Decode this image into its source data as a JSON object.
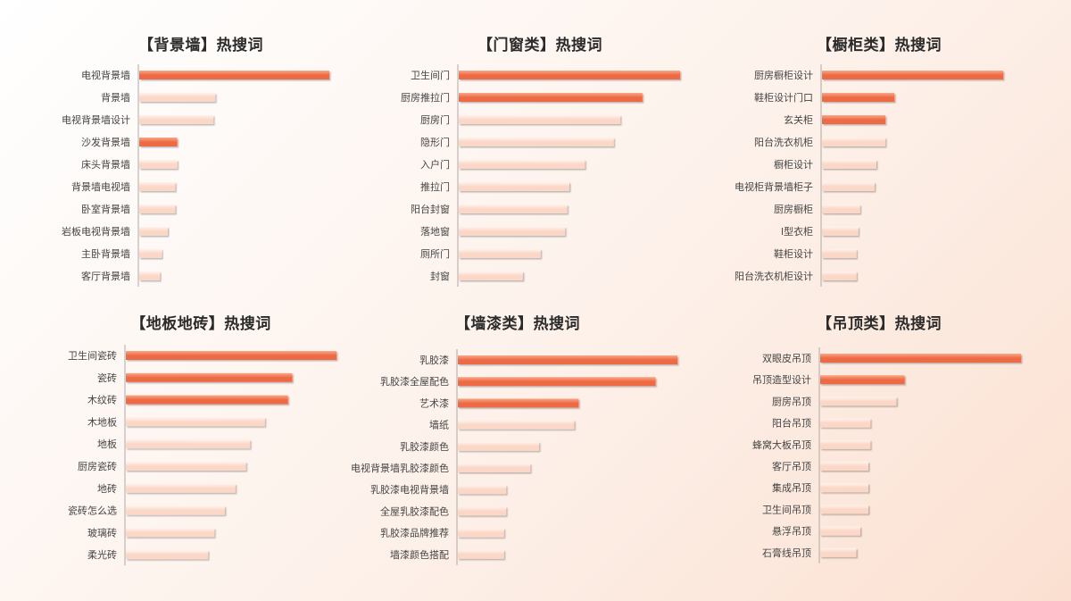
{
  "colors": {
    "hot": "#ee6a45",
    "hot_light": "#f7a98a",
    "cool": "#fbd7c7",
    "cool_light": "#fff2ec",
    "axis": "#b0a8a4"
  },
  "chart_data": [
    {
      "type": "bar",
      "orientation": "horizontal",
      "title": "【背景墙】热搜词",
      "categories": [
        "电视背景墙",
        "背景墙",
        "电视背景墙设计",
        "沙发背景墙",
        "床头背景墙",
        "背景墙电视墙",
        "卧室背景墙",
        "岩板电视背景墙",
        "主卧背景墙",
        "客厅背景墙"
      ],
      "values": [
        100,
        40,
        39,
        20,
        20,
        19,
        19,
        15,
        12,
        11
      ],
      "highlight": [
        true,
        false,
        false,
        true,
        false,
        false,
        false,
        false,
        false,
        false
      ],
      "xlim": [
        0,
        100
      ]
    },
    {
      "type": "bar",
      "orientation": "horizontal",
      "title": "【门窗类】热搜词",
      "categories": [
        "卫生间门",
        "厨房推拉门",
        "厨房门",
        "隐形门",
        "入户门",
        "推拉门",
        "阳台封窗",
        "落地窗",
        "厕所门",
        "封窗"
      ],
      "values": [
        100,
        83,
        73,
        70,
        57,
        50,
        49,
        48,
        37,
        29
      ],
      "highlight": [
        true,
        true,
        false,
        false,
        false,
        false,
        false,
        false,
        false,
        false
      ],
      "xlim": [
        0,
        100
      ]
    },
    {
      "type": "bar",
      "orientation": "horizontal",
      "title": "【橱柜类】热搜词",
      "categories": [
        "厨房橱柜设计",
        "鞋柜设计门口",
        "玄关柜",
        "阳台洗衣机柜",
        "橱柜设计",
        "电视柜背景墙柜子",
        "厨房橱柜",
        "l型衣柜",
        "鞋柜设计",
        "阳台洗衣机柜设计"
      ],
      "values": [
        100,
        40,
        35,
        35,
        30,
        29,
        21,
        20,
        19,
        19
      ],
      "highlight": [
        true,
        true,
        true,
        false,
        false,
        false,
        false,
        false,
        false,
        false
      ],
      "xlim": [
        0,
        100
      ]
    },
    {
      "type": "bar",
      "orientation": "horizontal",
      "title": "【地板地砖】热搜词",
      "categories": [
        "卫生间瓷砖",
        "瓷砖",
        "木纹砖",
        "木地板",
        "地板",
        "厨房瓷砖",
        "地砖",
        "瓷砖怎么选",
        "玻璃砖",
        "柔光砖"
      ],
      "values": [
        100,
        79,
        77,
        66,
        59,
        57,
        52,
        47,
        42,
        39
      ],
      "highlight": [
        true,
        true,
        true,
        false,
        false,
        false,
        false,
        false,
        false,
        false
      ],
      "xlim": [
        0,
        100
      ]
    },
    {
      "type": "bar",
      "orientation": "horizontal",
      "title": "【墙漆类】热搜词",
      "categories": [
        "乳胶漆",
        "乳胶漆全屋配色",
        "艺术漆",
        "墙纸",
        "乳胶漆颜色",
        "电视背景墙乳胶漆颜色",
        "乳胶漆电视背景墙",
        "全屋乳胶漆配色",
        "乳胶漆品牌推荐",
        "墙漆颜色搭配"
      ],
      "values": [
        100,
        90,
        55,
        53,
        37,
        33,
        22,
        22,
        21,
        21
      ],
      "highlight": [
        true,
        true,
        true,
        false,
        false,
        false,
        false,
        false,
        false,
        false
      ],
      "xlim": [
        0,
        100
      ]
    },
    {
      "type": "bar",
      "orientation": "horizontal",
      "title": "【吊顶类】热搜词",
      "categories": [
        "双眼皮吊顶",
        "吊顶造型设计",
        "厨房吊顶",
        "阳台吊顶",
        "蜂窝大板吊顶",
        "客厅吊顶",
        "集成吊顶",
        "卫生间吊顶",
        "悬浮吊顶",
        "石膏线吊顶"
      ],
      "values": [
        100,
        42,
        38,
        25,
        25,
        24,
        24,
        24,
        20,
        18
      ],
      "highlight": [
        true,
        true,
        false,
        false,
        false,
        false,
        false,
        false,
        false,
        false
      ],
      "xlim": [
        0,
        100
      ]
    }
  ]
}
